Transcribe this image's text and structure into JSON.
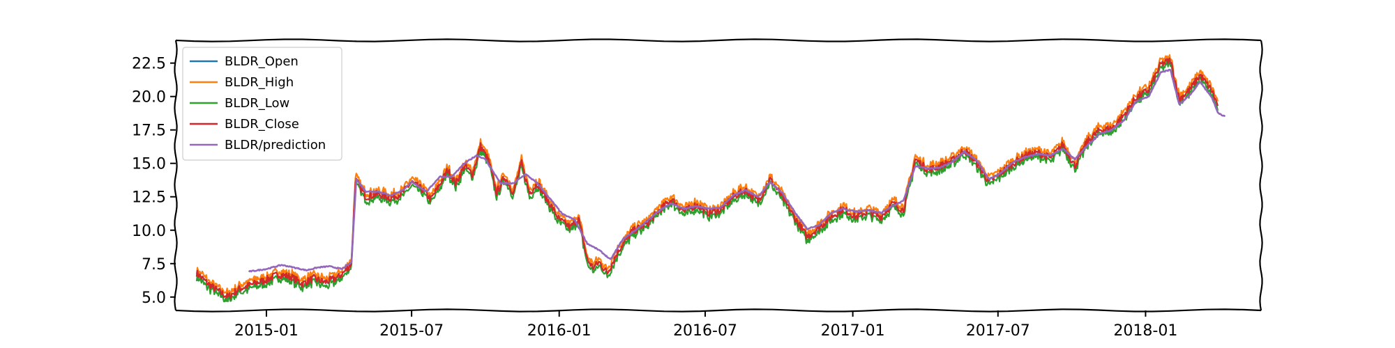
{
  "chart_data": {
    "type": "line",
    "title": "",
    "xlabel": "",
    "ylabel": "",
    "xlim": [
      "2014-09-10",
      "2018-05-25"
    ],
    "ylim": [
      4.0,
      24.2
    ],
    "x_ticks": [
      {
        "date": "2015-01-01",
        "label": "2015-01"
      },
      {
        "date": "2015-07-01",
        "label": "2015-07"
      },
      {
        "date": "2016-01-01",
        "label": "2016-01"
      },
      {
        "date": "2016-07-01",
        "label": "2016-07"
      },
      {
        "date": "2017-01-01",
        "label": "2017-01"
      },
      {
        "date": "2017-07-01",
        "label": "2017-07"
      },
      {
        "date": "2018-01-01",
        "label": "2018-01"
      }
    ],
    "y_ticks": [
      {
        "value": 5.0,
        "label": "5.0"
      },
      {
        "value": 7.5,
        "label": "7.5"
      },
      {
        "value": 10.0,
        "label": "10.0"
      },
      {
        "value": 12.5,
        "label": "12.5"
      },
      {
        "value": 15.0,
        "label": "15.0"
      },
      {
        "value": 17.5,
        "label": "17.5"
      },
      {
        "value": 20.0,
        "label": "20.0"
      },
      {
        "value": 22.5,
        "label": "22.5"
      }
    ],
    "grid": false,
    "legend_position": "upper-left",
    "close_points": [
      [
        "2014-10-06",
        6.8
      ],
      [
        "2014-10-20",
        6.0
      ],
      [
        "2014-11-03",
        5.4
      ],
      [
        "2014-11-14",
        5.0
      ],
      [
        "2014-11-28",
        5.6
      ],
      [
        "2014-12-12",
        5.9
      ],
      [
        "2015-01-01",
        6.3
      ],
      [
        "2015-01-16",
        6.7
      ],
      [
        "2015-02-01",
        6.5
      ],
      [
        "2015-02-15",
        6.0
      ],
      [
        "2015-03-01",
        6.4
      ],
      [
        "2015-03-15",
        6.1
      ],
      [
        "2015-04-01",
        6.5
      ],
      [
        "2015-04-10",
        7.0
      ],
      [
        "2015-04-17",
        7.5
      ],
      [
        "2015-04-22",
        13.8
      ],
      [
        "2015-05-05",
        12.5
      ],
      [
        "2015-05-20",
        12.7
      ],
      [
        "2015-06-05",
        12.4
      ],
      [
        "2015-06-20",
        12.8
      ],
      [
        "2015-07-01",
        13.6
      ],
      [
        "2015-07-15",
        13.0
      ],
      [
        "2015-07-25",
        12.3
      ],
      [
        "2015-08-05",
        13.4
      ],
      [
        "2015-08-15",
        14.5
      ],
      [
        "2015-08-25",
        13.5
      ],
      [
        "2015-09-05",
        14.8
      ],
      [
        "2015-09-15",
        14.2
      ],
      [
        "2015-09-25",
        16.3
      ],
      [
        "2015-10-05",
        15.2
      ],
      [
        "2015-10-15",
        12.8
      ],
      [
        "2015-10-25",
        14.0
      ],
      [
        "2015-11-05",
        12.8
      ],
      [
        "2015-11-15",
        15.0
      ],
      [
        "2015-11-25",
        12.8
      ],
      [
        "2015-12-05",
        13.5
      ],
      [
        "2015-12-15",
        12.5
      ],
      [
        "2016-01-01",
        10.8
      ],
      [
        "2016-01-15",
        10.2
      ],
      [
        "2016-01-25",
        10.9
      ],
      [
        "2016-02-05",
        7.8
      ],
      [
        "2016-02-12",
        7.2
      ],
      [
        "2016-02-20",
        7.6
      ],
      [
        "2016-03-01",
        6.8
      ],
      [
        "2016-03-15",
        8.5
      ],
      [
        "2016-04-01",
        9.9
      ],
      [
        "2016-04-20",
        10.5
      ],
      [
        "2016-05-05",
        11.5
      ],
      [
        "2016-05-20",
        12.3
      ],
      [
        "2016-06-05",
        11.4
      ],
      [
        "2016-06-20",
        11.9
      ],
      [
        "2016-07-05",
        11.3
      ],
      [
        "2016-07-20",
        11.5
      ],
      [
        "2016-08-05",
        12.5
      ],
      [
        "2016-08-20",
        13.0
      ],
      [
        "2016-09-05",
        12.2
      ],
      [
        "2016-09-20",
        13.8
      ],
      [
        "2016-10-05",
        12.5
      ],
      [
        "2016-10-20",
        11.0
      ],
      [
        "2016-11-05",
        9.5
      ],
      [
        "2016-11-20",
        10.2
      ],
      [
        "2016-12-05",
        11.0
      ],
      [
        "2016-12-20",
        11.6
      ],
      [
        "2017-01-05",
        11.0
      ],
      [
        "2017-01-20",
        11.4
      ],
      [
        "2017-02-05",
        11.0
      ],
      [
        "2017-02-20",
        12.0
      ],
      [
        "2017-03-05",
        11.5
      ],
      [
        "2017-03-20",
        15.3
      ],
      [
        "2017-04-05",
        14.5
      ],
      [
        "2017-04-20",
        14.8
      ],
      [
        "2017-05-05",
        15.2
      ],
      [
        "2017-05-20",
        16.0
      ],
      [
        "2017-06-05",
        15.0
      ],
      [
        "2017-06-20",
        13.6
      ],
      [
        "2017-07-05",
        14.3
      ],
      [
        "2017-07-20",
        15.0
      ],
      [
        "2017-08-05",
        15.6
      ],
      [
        "2017-08-20",
        15.8
      ],
      [
        "2017-09-05",
        15.4
      ],
      [
        "2017-09-20",
        16.4
      ],
      [
        "2017-10-05",
        14.8
      ],
      [
        "2017-10-20",
        16.6
      ],
      [
        "2017-11-05",
        17.5
      ],
      [
        "2017-11-20",
        17.6
      ],
      [
        "2017-12-05",
        18.6
      ],
      [
        "2017-12-20",
        19.9
      ],
      [
        "2018-01-05",
        20.5
      ],
      [
        "2018-01-20",
        22.4
      ],
      [
        "2018-02-01",
        22.7
      ],
      [
        "2018-02-12",
        19.8
      ],
      [
        "2018-02-25",
        20.5
      ],
      [
        "2018-03-10",
        21.6
      ],
      [
        "2018-03-25",
        20.4
      ],
      [
        "2018-04-01",
        19.3
      ]
    ],
    "prediction_points": [
      [
        "2014-12-10",
        6.9
      ],
      [
        "2015-01-01",
        7.1
      ],
      [
        "2015-01-20",
        7.4
      ],
      [
        "2015-02-05",
        7.2
      ],
      [
        "2015-02-20",
        7.0
      ],
      [
        "2015-03-05",
        7.2
      ],
      [
        "2015-03-20",
        7.3
      ],
      [
        "2015-04-05",
        7.1
      ],
      [
        "2015-04-17",
        7.6
      ],
      [
        "2015-04-23",
        13.8
      ],
      [
        "2015-05-05",
        12.9
      ],
      [
        "2015-05-20",
        12.9
      ],
      [
        "2015-06-05",
        12.6
      ],
      [
        "2015-06-20",
        13.0
      ],
      [
        "2015-07-01",
        13.6
      ],
      [
        "2015-07-20",
        12.9
      ],
      [
        "2015-08-05",
        14.0
      ],
      [
        "2015-08-20",
        14.0
      ],
      [
        "2015-09-05",
        15.0
      ],
      [
        "2015-09-20",
        15.6
      ],
      [
        "2015-10-01",
        15.3
      ],
      [
        "2015-10-20",
        13.5
      ],
      [
        "2015-11-05",
        13.5
      ],
      [
        "2015-11-20",
        14.2
      ],
      [
        "2015-12-05",
        13.5
      ],
      [
        "2015-12-20",
        12.4
      ],
      [
        "2016-01-05",
        11.2
      ],
      [
        "2016-01-20",
        10.8
      ],
      [
        "2016-02-05",
        9.0
      ],
      [
        "2016-02-20",
        8.5
      ],
      [
        "2016-03-05",
        7.8
      ],
      [
        "2016-03-20",
        9.3
      ],
      [
        "2016-04-05",
        10.0
      ],
      [
        "2016-04-20",
        10.7
      ],
      [
        "2016-05-05",
        11.5
      ],
      [
        "2016-05-20",
        12.0
      ],
      [
        "2016-06-05",
        11.6
      ],
      [
        "2016-06-20",
        11.8
      ],
      [
        "2016-07-05",
        11.6
      ],
      [
        "2016-07-20",
        11.7
      ],
      [
        "2016-08-05",
        12.6
      ],
      [
        "2016-08-20",
        13.0
      ],
      [
        "2016-09-05",
        12.5
      ],
      [
        "2016-09-20",
        13.6
      ],
      [
        "2016-10-05",
        12.8
      ],
      [
        "2016-10-20",
        11.4
      ],
      [
        "2016-11-05",
        10.1
      ],
      [
        "2016-11-20",
        10.4
      ],
      [
        "2016-12-05",
        11.3
      ],
      [
        "2016-12-20",
        11.6
      ],
      [
        "2017-01-05",
        11.4
      ],
      [
        "2017-01-20",
        11.5
      ],
      [
        "2017-02-05",
        11.3
      ],
      [
        "2017-02-20",
        11.8
      ],
      [
        "2017-03-05",
        12.2
      ],
      [
        "2017-03-20",
        14.8
      ],
      [
        "2017-04-05",
        14.6
      ],
      [
        "2017-04-20",
        14.7
      ],
      [
        "2017-05-05",
        15.1
      ],
      [
        "2017-05-20",
        15.9
      ],
      [
        "2017-06-05",
        15.2
      ],
      [
        "2017-06-20",
        13.8
      ],
      [
        "2017-07-05",
        14.3
      ],
      [
        "2017-07-20",
        15.1
      ],
      [
        "2017-08-05",
        15.5
      ],
      [
        "2017-08-20",
        15.7
      ],
      [
        "2017-09-05",
        15.6
      ],
      [
        "2017-09-20",
        16.1
      ],
      [
        "2017-10-05",
        15.3
      ],
      [
        "2017-10-20",
        16.3
      ],
      [
        "2017-11-05",
        17.2
      ],
      [
        "2017-11-20",
        17.5
      ],
      [
        "2017-12-05",
        18.2
      ],
      [
        "2017-12-20",
        19.6
      ],
      [
        "2018-01-05",
        20.0
      ],
      [
        "2018-01-20",
        21.8
      ],
      [
        "2018-02-01",
        22.0
      ],
      [
        "2018-02-12",
        19.4
      ],
      [
        "2018-02-25",
        20.1
      ],
      [
        "2018-03-10",
        21.1
      ],
      [
        "2018-03-25",
        19.9
      ],
      [
        "2018-04-01",
        18.8
      ],
      [
        "2018-04-10",
        18.5
      ]
    ],
    "series": [
      {
        "name": "BLDR_Open",
        "color": "#1f77b4",
        "offset": 0.0
      },
      {
        "name": "BLDR_High",
        "color": "#ff7f0e",
        "offset": 0.28
      },
      {
        "name": "BLDR_Low",
        "color": "#2ca02c",
        "offset": -0.28
      },
      {
        "name": "BLDR_Close",
        "color": "#d62728",
        "offset": 0.0
      },
      {
        "name": "BLDR/prediction",
        "color": "#9467bd",
        "offset": 0.0
      }
    ]
  }
}
